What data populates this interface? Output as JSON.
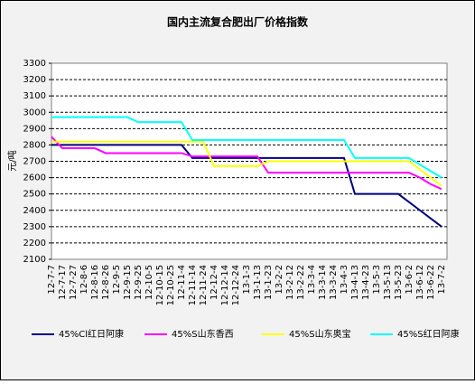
{
  "chart_data": {
    "type": "line",
    "title": "国内主流复合肥出厂价格指数",
    "y_label": "元/吨",
    "categories": [
      "12-7-7",
      "12-7-17",
      "12-7-27",
      "12-8-6",
      "12-8-16",
      "12-8-26",
      "12-9-5",
      "12-9-15",
      "12-9-25",
      "12-10-5",
      "12-10-15",
      "12-10-25",
      "12-11-4",
      "12-11-14",
      "12-11-24",
      "12-12-4",
      "12-12-14",
      "12-12-24",
      "13-1-3",
      "13-1-13",
      "13-1-23",
      "13-2-2",
      "13-2-12",
      "13-2-22",
      "13-3-4",
      "13-3-14",
      "13-3-24",
      "13-4-3",
      "13-4-13",
      "13-4-23",
      "13-5-3",
      "13-5-13",
      "13-5-23",
      "13-6-2",
      "13-6-12",
      "13-6-22",
      "13-7-2"
    ],
    "series": [
      {
        "name": "45%Cl红日阿康",
        "color": "#000080",
        "values": [
          2800,
          2800,
          2800,
          2800,
          2800,
          2800,
          2800,
          2800,
          2800,
          2800,
          2800,
          2800,
          2800,
          2720,
          2720,
          2720,
          2720,
          2720,
          2720,
          2720,
          2720,
          2720,
          2720,
          2720,
          2720,
          2720,
          2720,
          2720,
          2500,
          2500,
          2500,
          2500,
          2500,
          2450,
          2400,
          2350,
          2300
        ]
      },
      {
        "name": "45%S山东香西",
        "color": "#ff00ff",
        "values": [
          2850,
          2780,
          2780,
          2780,
          2780,
          2750,
          2750,
          2750,
          2750,
          2750,
          2750,
          2750,
          2750,
          2730,
          2730,
          2730,
          2730,
          2730,
          2730,
          2730,
          2630,
          2630,
          2630,
          2630,
          2630,
          2630,
          2630,
          2630,
          2630,
          2630,
          2630,
          2630,
          2630,
          2630,
          2600,
          2560,
          2530
        ]
      },
      {
        "name": "45%S山东奥宝",
        "color": "#ffff00",
        "values": [
          2820,
          2820,
          2820,
          2820,
          2820,
          2820,
          2820,
          2820,
          2820,
          2820,
          2820,
          2820,
          2820,
          2820,
          2820,
          2670,
          2670,
          2670,
          2670,
          2670,
          2700,
          2700,
          2700,
          2700,
          2700,
          2700,
          2700,
          2700,
          2700,
          2700,
          2700,
          2700,
          2700,
          2700,
          2650,
          2600,
          2550
        ]
      },
      {
        "name": "45%S红日阿康",
        "color": "#00ffff",
        "values": [
          2970,
          2970,
          2970,
          2970,
          2970,
          2970,
          2970,
          2970,
          2940,
          2940,
          2940,
          2940,
          2940,
          2830,
          2830,
          2830,
          2830,
          2830,
          2830,
          2830,
          2830,
          2830,
          2830,
          2830,
          2830,
          2830,
          2830,
          2830,
          2720,
          2720,
          2720,
          2720,
          2720,
          2720,
          2680,
          2640,
          2600
        ]
      }
    ],
    "ylim": [
      2100,
      3300
    ],
    "yticks": [
      2100,
      2200,
      2300,
      2400,
      2500,
      2600,
      2700,
      2800,
      2900,
      3000,
      3100,
      3200,
      3300
    ],
    "grid": true,
    "legend": "bottom"
  }
}
